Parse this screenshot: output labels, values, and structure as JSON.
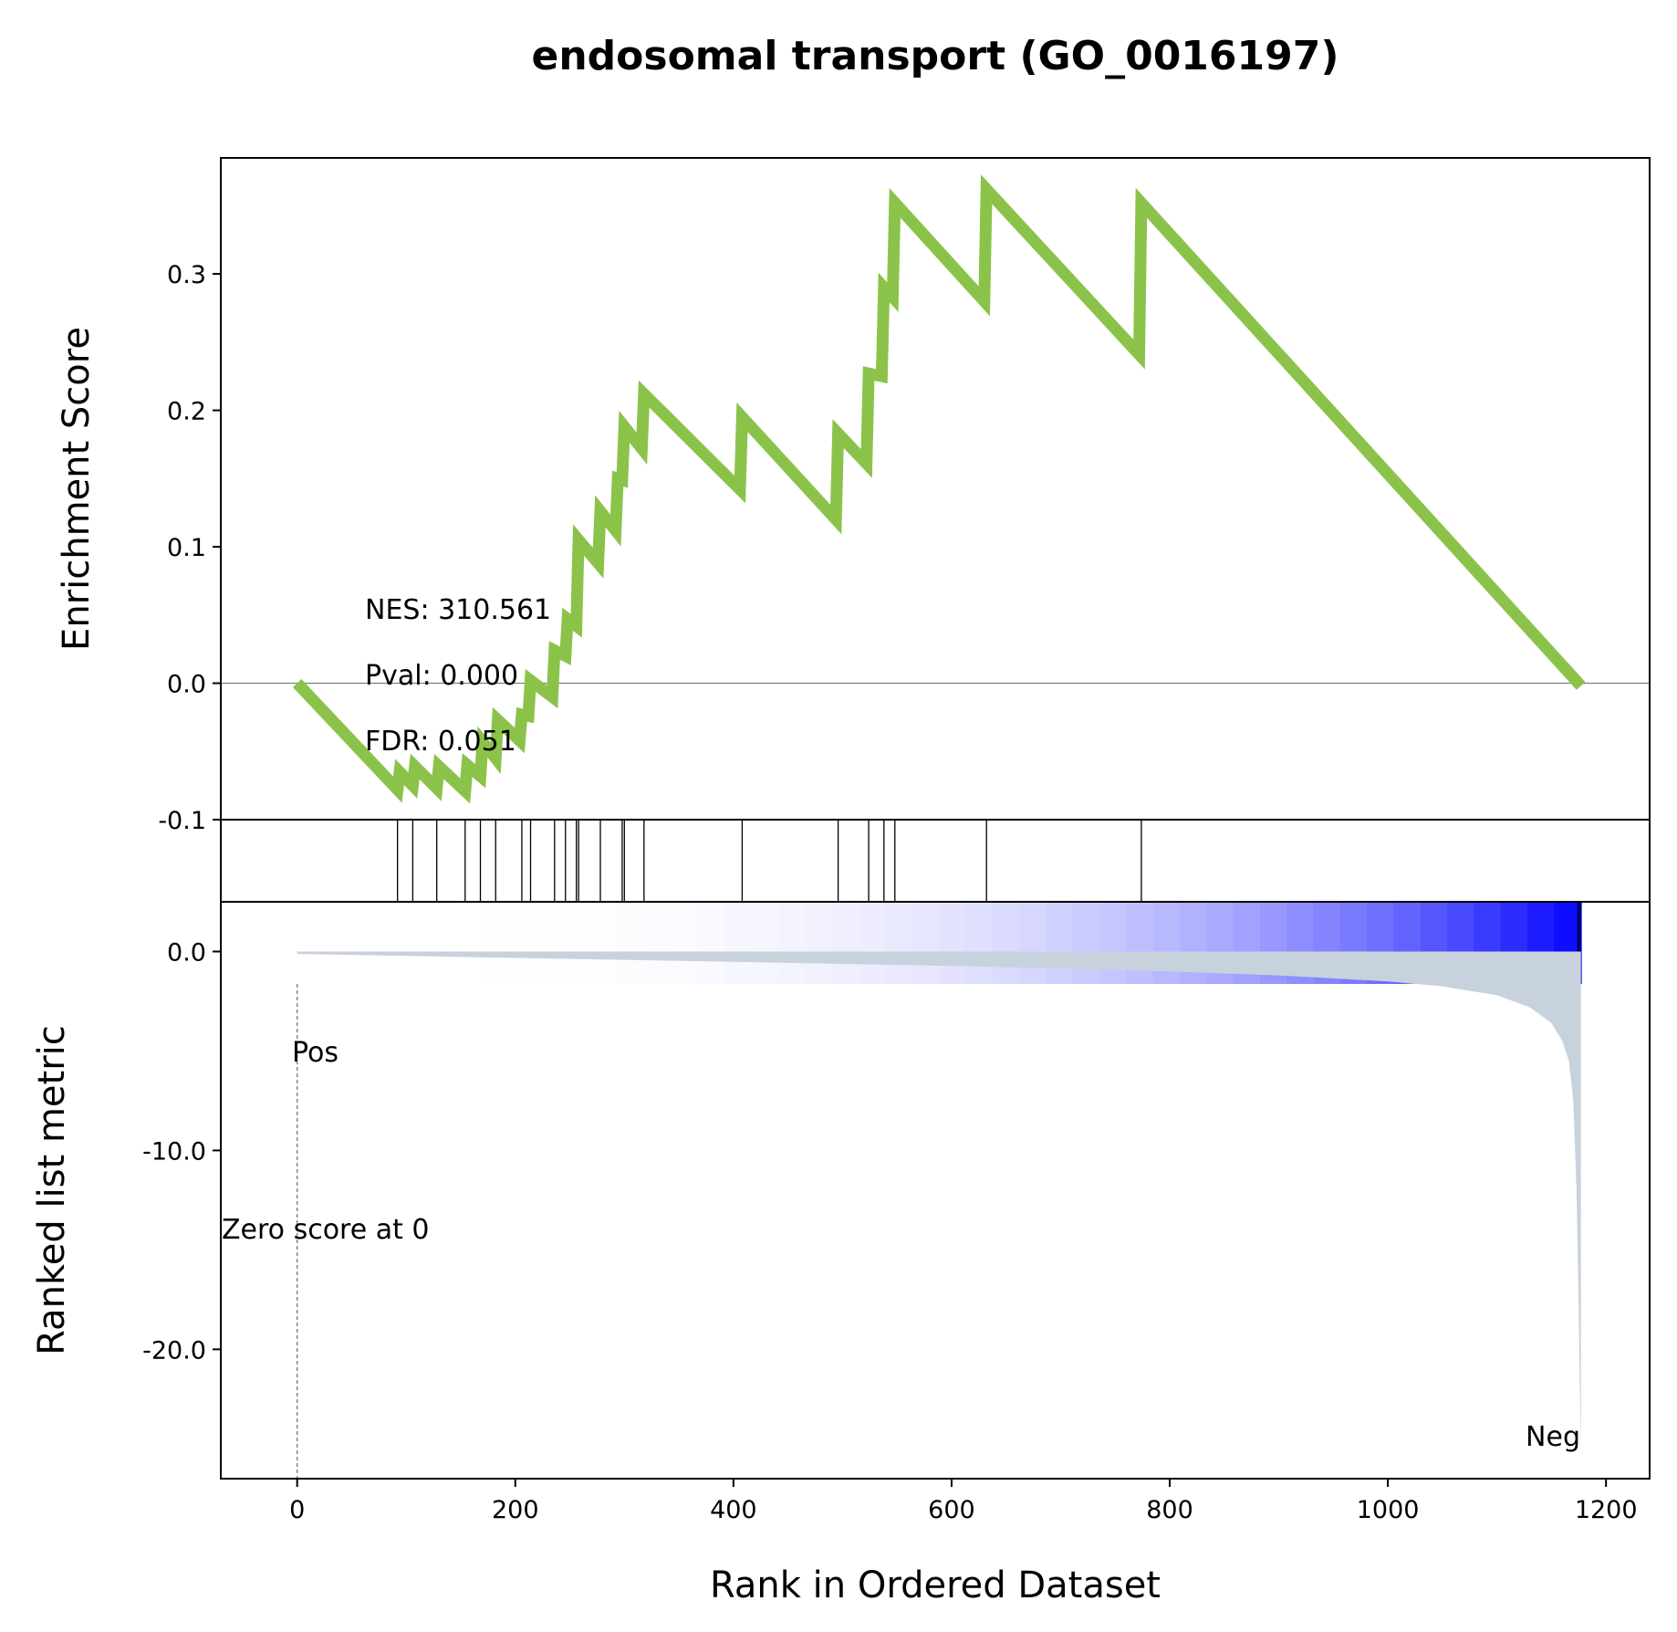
{
  "chart_data": {
    "type": "line",
    "title": "endosomal transport (GO_0016197)",
    "xlabel": "Rank in Ordered Dataset",
    "xlim": [
      -70,
      1240
    ],
    "x_ticks": [
      "0",
      "200",
      "400",
      "600",
      "800",
      "1000",
      "1200"
    ],
    "x_tick_values": [
      0,
      200,
      400,
      600,
      800,
      1000,
      1200
    ],
    "colors": {
      "es_line": "#8bc34a",
      "metric_fill": "#c8d2dc",
      "heat_low": "#ffffff",
      "heat_high": "#0000ff",
      "pos_label": "#ff0000",
      "neg_label": "#0000ff"
    },
    "enrichment_panel": {
      "ylabel": "Enrichment Score",
      "ylim": [
        -0.1,
        0.385
      ],
      "y_ticks": [
        "0.3",
        "0.2",
        "0.1",
        "0.0",
        "-0.1"
      ],
      "y_tick_values": [
        0.3,
        0.2,
        0.1,
        0.0,
        -0.1
      ],
      "series": [
        {
          "x": [
            0,
            92,
            94,
            106,
            108,
            128,
            130,
            154,
            156,
            168,
            170,
            182,
            184,
            204,
            206,
            212,
            214,
            234,
            236,
            246,
            248,
            256,
            258,
            276,
            278,
            292,
            294,
            298,
            300,
            316,
            318,
            406,
            408,
            494,
            496,
            522,
            524,
            536,
            538,
            546,
            548,
            630,
            632,
            772,
            774,
            1177
          ],
          "y": [
            0.0,
            -0.078,
            -0.065,
            -0.075,
            -0.061,
            -0.077,
            -0.061,
            -0.079,
            -0.06,
            -0.068,
            -0.043,
            -0.055,
            -0.027,
            -0.042,
            -0.023,
            -0.024,
            0.002,
            -0.01,
            0.024,
            0.02,
            0.047,
            0.042,
            0.105,
            0.088,
            0.126,
            0.112,
            0.15,
            0.149,
            0.188,
            0.172,
            0.212,
            0.142,
            0.195,
            0.12,
            0.183,
            0.161,
            0.227,
            0.225,
            0.29,
            0.283,
            0.352,
            0.28,
            0.362,
            0.241,
            0.352,
            -0.002
          ]
        }
      ],
      "annotations": {
        "nes": "NES: 310.561",
        "pval": "Pval: 0.000",
        "fdr": "FDR: 0.051"
      }
    },
    "hits_panel": {
      "hit_ranks": [
        92,
        106,
        128,
        154,
        168,
        182,
        206,
        214,
        236,
        246,
        256,
        258,
        278,
        298,
        300,
        318,
        408,
        496,
        524,
        538,
        548,
        632,
        774
      ]
    },
    "metric_panel": {
      "ylabel": "Ranked list metric",
      "ylim": [
        -26.5,
        2.5
      ],
      "y_ticks": [
        "0.0",
        "-10.0",
        "-20.0"
      ],
      "y_tick_values": [
        0,
        -10,
        -20
      ],
      "x": [
        0,
        100,
        200,
        300,
        400,
        500,
        600,
        700,
        800,
        900,
        1000,
        1050,
        1100,
        1130,
        1150,
        1160,
        1166,
        1170,
        1173,
        1175,
        1176,
        1177
      ],
      "y": [
        -0.12,
        -0.22,
        -0.32,
        -0.42,
        -0.52,
        -0.62,
        -0.72,
        -0.85,
        -1.0,
        -1.2,
        -1.5,
        -1.75,
        -2.2,
        -2.8,
        -3.6,
        -4.5,
        -5.5,
        -7.5,
        -12,
        -18,
        -22,
        -25
      ],
      "zero_score_rank": 0,
      "zero_score_label": "Zero score at 0",
      "pos_label": "Pos",
      "neg_label": "Neg"
    }
  }
}
